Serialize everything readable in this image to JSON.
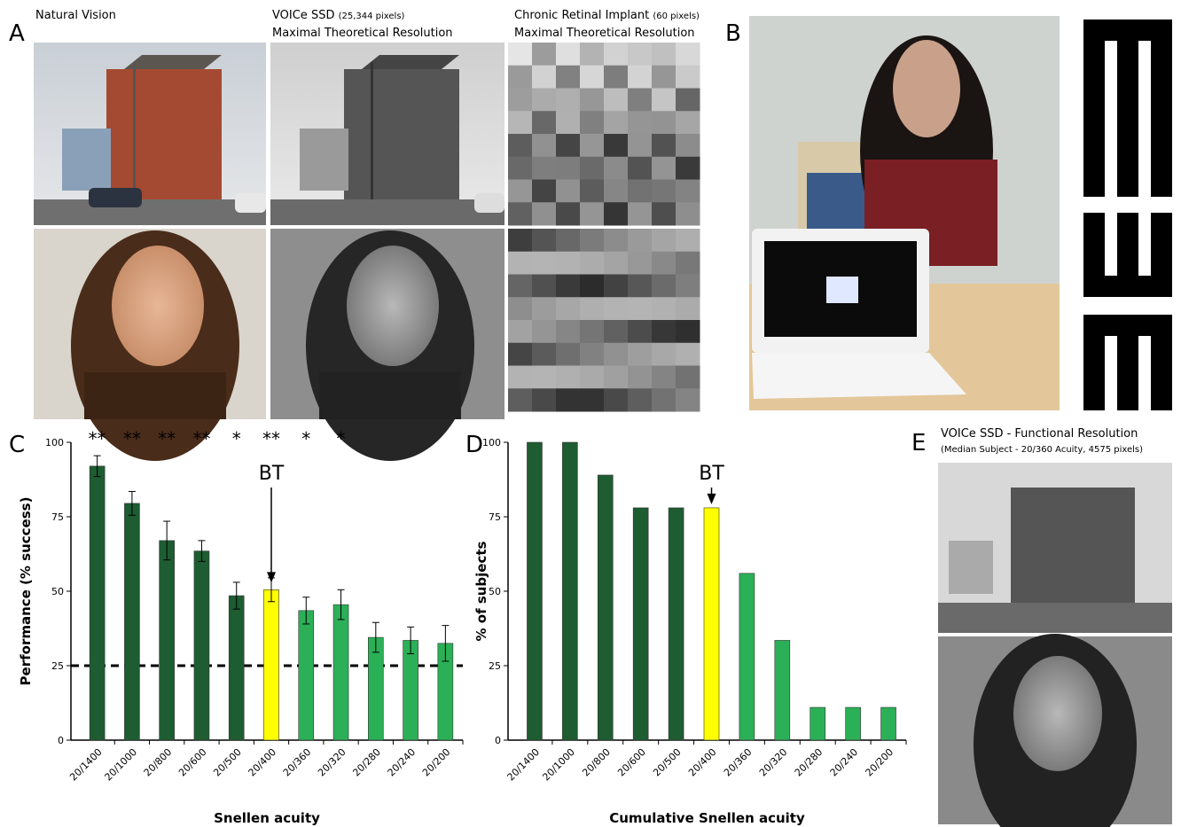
{
  "panels": {
    "A": {
      "label": "A",
      "captions": [
        {
          "line1": "Natural Vision"
        },
        {
          "line1": "VOICe SSD",
          "small": "(25,344 pixels)",
          "line2": "Maximal Theoretical Resolution"
        },
        {
          "line1": "Chronic Retinal Implant",
          "small": "(60 pixels)",
          "line2": "Maximal Theoretical Resolution"
        }
      ]
    },
    "B": {
      "label": "B"
    },
    "C": {
      "label": "C"
    },
    "D": {
      "label": "D"
    },
    "E": {
      "label": "E",
      "line1": "VOICe SSD - Functional Resolution",
      "line2": "(Median Subject - 20/360 Acuity, 4575 pixels)"
    }
  },
  "chart_data": [
    {
      "type": "bar",
      "categories": [
        "20/1400",
        "20/1000",
        "20/800",
        "20/600",
        "20/500",
        "20/400",
        "20/360",
        "20/320",
        "20/280",
        "20/240",
        "20/200"
      ],
      "values": [
        92,
        79.5,
        67,
        63.5,
        48.5,
        50.5,
        43.5,
        45.5,
        34.5,
        33.5,
        32.5
      ],
      "errors": [
        3.5,
        4,
        6.5,
        3.5,
        4.5,
        4,
        4.5,
        5,
        5,
        4.5,
        6
      ],
      "colors": [
        "#1e5c32",
        "#1e5c32",
        "#1e5c32",
        "#1e5c32",
        "#1e5c32",
        "#ffff00",
        "#2bb057",
        "#2bb057",
        "#2bb057",
        "#2bb057",
        "#2bb057"
      ],
      "significance": [
        "**",
        "**",
        "**",
        "**",
        "*",
        "**",
        "*",
        "*",
        null,
        null,
        null
      ],
      "annotation": {
        "text": "BT",
        "category": "20/400"
      },
      "reference_line": 25,
      "ylim": [
        0,
        100
      ],
      "yticks": [
        0,
        25,
        50,
        75,
        100
      ],
      "y_label": "Performance (% success)",
      "x_label": "Snellen acuity"
    },
    {
      "type": "bar",
      "categories": [
        "20/1400",
        "20/1000",
        "20/800",
        "20/600",
        "20/500",
        "20/400",
        "20/360",
        "20/320",
        "20/280",
        "20/240",
        "20/200"
      ],
      "values": [
        100,
        100,
        89,
        78,
        78,
        78,
        56,
        33.5,
        11,
        11,
        11
      ],
      "colors": [
        "#1e5c32",
        "#1e5c32",
        "#1e5c32",
        "#1e5c32",
        "#1e5c32",
        "#ffff00",
        "#2bb057",
        "#2bb057",
        "#2bb057",
        "#2bb057",
        "#2bb057"
      ],
      "annotation": {
        "text": "BT",
        "category": "20/400"
      },
      "ylim": [
        0,
        100
      ],
      "yticks": [
        0,
        25,
        50,
        75,
        100
      ],
      "y_label": "% of subjects",
      "x_label": "Cumulative Snellen acuity"
    }
  ]
}
